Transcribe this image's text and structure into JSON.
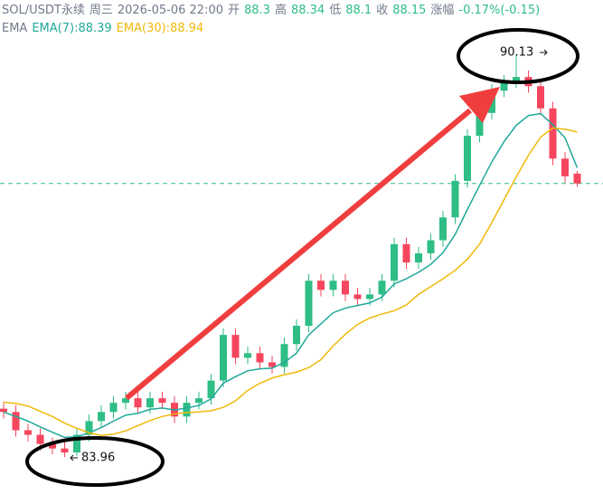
{
  "chart_data": {
    "type": "candlestick",
    "header": {
      "symbol": "SOL/USDT永续",
      "weekday": "周三",
      "datetime": "2026-05-06 22:00",
      "open_label": "开",
      "high_label": "高",
      "low_label": "低",
      "close_label": "收",
      "change_label": "涨幅",
      "change_pct": "-0.17%",
      "change_abs": "(-0.15)",
      "indicator": "EMA",
      "ema7": "EMA(7):88.39",
      "ema30": "EMA(30):88.94"
    },
    "ylim": [
      83.24,
      90.96
    ],
    "up_color": "#2ebd85",
    "down_color": "#f6465d",
    "open": [
      84.7,
      84.65,
      84.37,
      84.3,
      84.16,
      84.09,
      84.03,
      84.3,
      84.51,
      84.65,
      84.79,
      84.86,
      84.72,
      84.86,
      84.79,
      84.58,
      84.79,
      84.86,
      85.13,
      85.83,
      85.48,
      85.55,
      85.41,
      85.34,
      85.69,
      85.97,
      86.66,
      86.52,
      86.66,
      86.45,
      86.38,
      86.45,
      86.66,
      87.22,
      86.94,
      87.08,
      87.28,
      87.63,
      88.19,
      88.88,
      89.23,
      89.57,
      89.71,
      89.78,
      89.64,
      89.3,
      88.53,
      88.3
    ],
    "high": [
      84.8,
      84.75,
      84.47,
      84.4,
      84.26,
      84.19,
      84.4,
      84.61,
      84.75,
      84.89,
      84.96,
      84.96,
      84.96,
      84.96,
      84.89,
      84.89,
      84.96,
      85.23,
      85.93,
      85.93,
      85.65,
      85.65,
      85.51,
      85.79,
      86.07,
      86.76,
      86.76,
      86.76,
      86.76,
      86.55,
      86.55,
      86.76,
      87.32,
      87.32,
      87.18,
      87.38,
      87.73,
      88.29,
      88.98,
      89.33,
      89.67,
      89.81,
      90.13,
      89.88,
      89.74,
      89.4,
      88.63,
      88.34
    ],
    "low": [
      84.55,
      84.27,
      84.2,
      84.06,
      84.0,
      83.96,
      83.98,
      84.2,
      84.41,
      84.55,
      84.69,
      84.62,
      84.62,
      84.69,
      84.48,
      84.48,
      84.69,
      84.76,
      85.03,
      85.38,
      85.38,
      85.31,
      85.24,
      85.24,
      85.59,
      85.87,
      86.42,
      86.42,
      86.35,
      86.28,
      86.28,
      86.35,
      86.56,
      86.84,
      86.84,
      86.98,
      87.18,
      87.53,
      88.09,
      88.78,
      89.13,
      89.47,
      89.61,
      89.54,
      89.2,
      88.43,
      88.16,
      88.1
    ],
    "close": [
      84.65,
      84.37,
      84.3,
      84.16,
      84.09,
      84.03,
      84.3,
      84.51,
      84.65,
      84.79,
      84.86,
      84.72,
      84.86,
      84.79,
      84.58,
      84.79,
      84.86,
      85.13,
      85.83,
      85.48,
      85.55,
      85.41,
      85.34,
      85.69,
      85.97,
      86.66,
      86.52,
      86.66,
      86.45,
      86.38,
      86.45,
      86.66,
      87.22,
      86.94,
      87.08,
      87.28,
      87.63,
      88.19,
      88.88,
      89.23,
      89.57,
      89.71,
      89.78,
      89.64,
      89.3,
      88.53,
      88.26,
      88.15
    ],
    "series": [
      {
        "name": "EMA(7)",
        "color": "#1fa89a",
        "values": [
          84.65,
          84.58,
          84.51,
          84.42,
          84.34,
          84.26,
          84.27,
          84.33,
          84.41,
          84.51,
          84.6,
          84.63,
          84.69,
          84.71,
          84.68,
          84.71,
          84.75,
          84.85,
          85.09,
          85.19,
          85.28,
          85.31,
          85.32,
          85.41,
          85.55,
          85.83,
          86.0,
          86.17,
          86.24,
          86.28,
          86.32,
          86.41,
          86.61,
          86.69,
          86.79,
          86.91,
          87.09,
          87.37,
          87.75,
          88.12,
          88.48,
          88.79,
          89.04,
          89.19,
          89.22,
          89.05,
          88.85,
          88.39
        ]
      },
      {
        "name": "EMA(30)",
        "color": "#f0b90b",
        "values": [
          84.8,
          84.78,
          84.74,
          84.66,
          84.58,
          84.48,
          84.4,
          84.33,
          84.29,
          84.31,
          84.36,
          84.44,
          84.52,
          84.58,
          84.62,
          84.64,
          84.65,
          84.67,
          84.72,
          84.82,
          84.98,
          85.09,
          85.17,
          85.22,
          85.26,
          85.33,
          85.45,
          85.66,
          85.84,
          85.99,
          86.09,
          86.15,
          86.2,
          86.29,
          86.45,
          86.57,
          86.69,
          86.82,
          86.99,
          87.22,
          87.55,
          87.9,
          88.25,
          88.58,
          88.86,
          89.0,
          88.98,
          88.94
        ]
      }
    ]
  }
}
